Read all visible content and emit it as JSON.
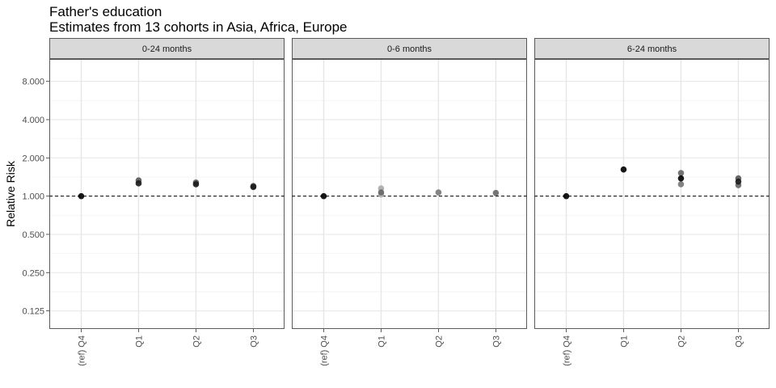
{
  "chart_data": {
    "type": "scatter",
    "title": "Father's education",
    "subtitle": "Estimates from 13 cohorts in Asia, Africa, Europe",
    "ylabel": "Relative Risk",
    "xlabel": "",
    "y_scale": "log",
    "ylim": [
      0.09,
      12.0
    ],
    "y_ticks": [
      {
        "value": 0.125,
        "label": "0.125"
      },
      {
        "value": 0.25,
        "label": "0.250"
      },
      {
        "value": 0.5,
        "label": "0.500"
      },
      {
        "value": 1,
        "label": "1.000"
      },
      {
        "value": 2,
        "label": "2.000"
      },
      {
        "value": 4,
        "label": "4.000"
      },
      {
        "value": 8,
        "label": "8.000"
      }
    ],
    "categories": [
      "(ref) Q4",
      "Q1",
      "Q2",
      "Q3"
    ],
    "reference_line": 1,
    "grid": true,
    "panels": [
      {
        "name": "0-24 months",
        "points": [
          {
            "x": "(ref) Q4",
            "y": 1.0,
            "color": "#000000"
          },
          {
            "x": "Q1",
            "y": 1.33,
            "color": "#555555"
          },
          {
            "x": "Q1",
            "y": 1.26,
            "color": "#1a1a1a"
          },
          {
            "x": "Q2",
            "y": 1.28,
            "color": "#555555"
          },
          {
            "x": "Q2",
            "y": 1.24,
            "color": "#1a1a1a"
          },
          {
            "x": "Q3",
            "y": 1.2,
            "color": "#444444"
          },
          {
            "x": "Q3",
            "y": 1.18,
            "color": "#1a1a1a"
          }
        ]
      },
      {
        "name": "0-6 months",
        "points": [
          {
            "x": "(ref) Q4",
            "y": 1.0,
            "color": "#000000"
          },
          {
            "x": "Q1",
            "y": 1.15,
            "color": "#aaaaaa"
          },
          {
            "x": "Q1",
            "y": 1.03,
            "color": "#b0b0b0"
          },
          {
            "x": "Q1",
            "y": 1.07,
            "color": "#666666"
          },
          {
            "x": "Q2",
            "y": 1.07,
            "color": "#777777"
          },
          {
            "x": "Q3",
            "y": 1.06,
            "color": "#666666"
          }
        ]
      },
      {
        "name": "6-24 months",
        "points": [
          {
            "x": "(ref) Q4",
            "y": 1.0,
            "color": "#000000"
          },
          {
            "x": "Q1",
            "y": 1.62,
            "color": "#000000"
          },
          {
            "x": "Q2",
            "y": 1.52,
            "color": "#666666"
          },
          {
            "x": "Q2",
            "y": 1.24,
            "color": "#777777"
          },
          {
            "x": "Q2",
            "y": 1.38,
            "color": "#000000"
          },
          {
            "x": "Q3",
            "y": 1.38,
            "color": "#555555"
          },
          {
            "x": "Q3",
            "y": 1.22,
            "color": "#666666"
          },
          {
            "x": "Q3",
            "y": 1.3,
            "color": "#1a1a1a"
          }
        ]
      }
    ]
  }
}
